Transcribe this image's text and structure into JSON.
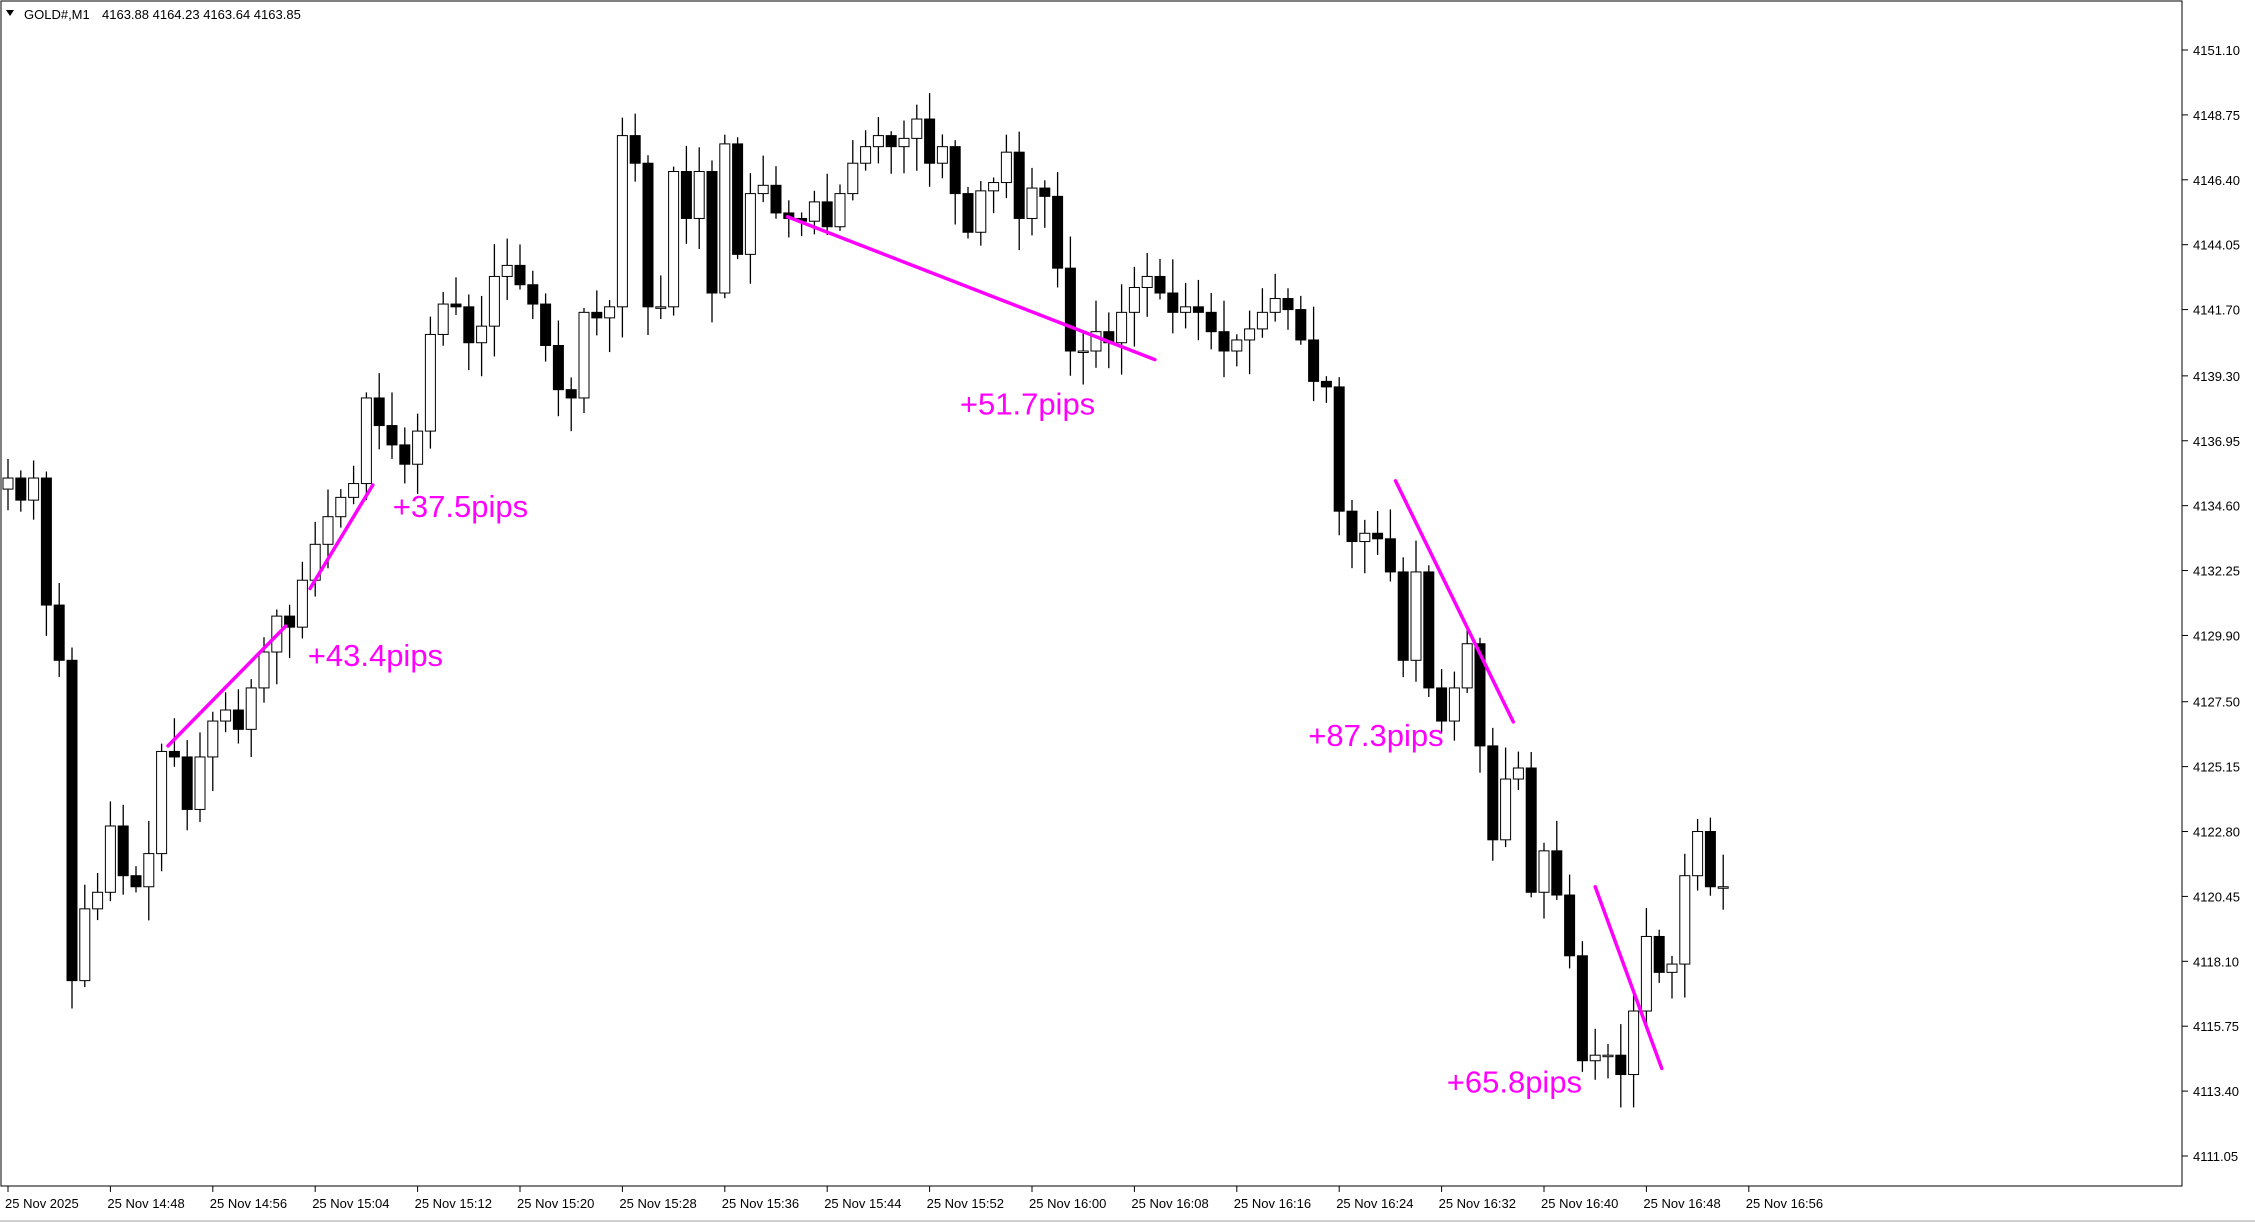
{
  "header": {
    "symbol": "GOLD#,M1",
    "ohlc": "4163.88 4164.23 4163.64 4163.85"
  },
  "chart_data": {
    "type": "candlestick",
    "ylim": [
      4110.0,
      4152.0
    ],
    "y_ticks": [
      "4151.10",
      "4148.75",
      "4146.40",
      "4144.05",
      "4141.70",
      "4139.30",
      "4136.95",
      "4134.60",
      "4132.25",
      "4129.90",
      "4127.50",
      "4125.15",
      "4122.80",
      "4120.45",
      "4118.10",
      "4115.75",
      "4113.40",
      "4111.05"
    ],
    "x_ticks": [
      {
        "label": "25 Nov 2025",
        "index": 0
      },
      {
        "label": "25 Nov 14:48",
        "index": 8
      },
      {
        "label": "25 Nov 14:56",
        "index": 16
      },
      {
        "label": "25 Nov 15:04",
        "index": 24
      },
      {
        "label": "25 Nov 15:12",
        "index": 32
      },
      {
        "label": "25 Nov 15:20",
        "index": 40
      },
      {
        "label": "25 Nov 15:28",
        "index": 48
      },
      {
        "label": "25 Nov 15:36",
        "index": 56
      },
      {
        "label": "25 Nov 15:44",
        "index": 64
      },
      {
        "label": "25 Nov 15:52",
        "index": 72
      },
      {
        "label": "25 Nov 16:00",
        "index": 80
      },
      {
        "label": "25 Nov 16:08",
        "index": 88
      },
      {
        "label": "25 Nov 16:16",
        "index": 96
      },
      {
        "label": "25 Nov 16:24",
        "index": 104
      },
      {
        "label": "25 Nov 16:32",
        "index": 112
      },
      {
        "label": "25 Nov 16:40",
        "index": 120
      },
      {
        "label": "25 Nov 16:48",
        "index": 128
      },
      {
        "label": "25 Nov 16:56",
        "index": 136
      }
    ],
    "closes": [
      4135.6,
      4134.8,
      4135.6,
      4131.0,
      4129.0,
      4117.4,
      4120.0,
      4120.6,
      4123.0,
      4121.2,
      4120.8,
      4122.0,
      4125.7,
      4125.5,
      4123.6,
      4125.5,
      4126.8,
      4127.2,
      4126.5,
      4128.0,
      4129.3,
      4130.6,
      4130.2,
      4131.9,
      4133.2,
      4134.2,
      4134.9,
      4135.4,
      4138.5,
      4137.5,
      4136.8,
      4136.1,
      4137.3,
      4140.8,
      4141.9,
      4141.8,
      4140.5,
      4141.1,
      4142.9,
      4143.3,
      4142.6,
      4141.9,
      4140.4,
      4138.8,
      4138.5,
      4141.6,
      4141.4,
      4141.8,
      4148.0,
      4147.0,
      4141.8,
      4141.8,
      4146.7,
      4145.0,
      4146.7,
      4142.3,
      4147.7,
      4143.7,
      4145.9,
      4146.2,
      4145.2,
      4145.0,
      4144.9,
      4145.6,
      4144.7,
      4145.9,
      4147.0,
      4147.6,
      4148.0,
      4147.6,
      4147.9,
      4148.6,
      4147.0,
      4147.6,
      4145.9,
      4144.5,
      4146.0,
      4146.3,
      4147.4,
      4145.0,
      4146.1,
      4145.8,
      4143.2,
      4140.2,
      4140.2,
      4140.9,
      4140.5,
      4141.6,
      4142.5,
      4142.9,
      4142.3,
      4141.6,
      4141.8,
      4141.6,
      4140.9,
      4140.2,
      4140.6,
      4141.0,
      4141.6,
      4142.1,
      4141.7,
      4140.6,
      4139.1,
      4138.9,
      4134.4,
      4133.3,
      4133.6,
      4133.4,
      4132.2,
      4129.0,
      4132.2,
      4128.0,
      4126.8,
      4128.0,
      4129.6,
      4125.9,
      4122.5,
      4124.7,
      4125.1,
      4120.6,
      4122.1,
      4120.5,
      4118.3,
      4114.5,
      4114.7,
      4114.7,
      4114.0,
      4116.3,
      4119.0,
      4117.7,
      4118.0,
      4121.2,
      4122.8,
      4120.8,
      4120.8
    ],
    "series": [
      {
        "name": "trendline",
        "label": "+43.4pips",
        "x": [
          12.5,
          21.7
        ],
        "y": [
          4125.9,
          4130.24
        ]
      },
      {
        "name": "trendline",
        "label": "+37.5pips",
        "x": [
          23.6,
          28.5
        ],
        "y": [
          4131.6,
          4135.35
        ]
      },
      {
        "name": "trendline",
        "label": "+51.7pips",
        "x": [
          60.9,
          89.6
        ],
        "y": [
          4145.06,
          4139.89
        ]
      },
      {
        "name": "trendline",
        "label": "+87.3pips",
        "x": [
          108.4,
          117.6
        ],
        "y": [
          4135.5,
          4126.77
        ]
      },
      {
        "name": "trendline",
        "label": "+65.8pips",
        "x": [
          124.0,
          129.2
        ],
        "y": [
          4120.8,
          4114.22
        ]
      }
    ],
    "annotations": [
      "+43.4pips",
      "+37.5pips",
      "+51.7pips",
      "+87.3pips",
      "+65.8pips"
    ],
    "grid": false
  },
  "colors": {
    "bull_fill": "#ffffff",
    "bear_fill": "#000000",
    "candle_outline": "#000000",
    "trendline": "#ff00ff",
    "annotation": "#ff00ff"
  }
}
